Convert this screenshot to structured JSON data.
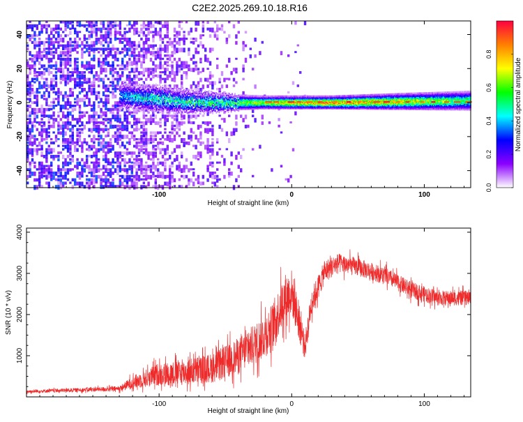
{
  "title": "C2E2.2025.269.10.18.R16",
  "colors": {
    "series": "#ee2a2a",
    "background": "#ffffff",
    "frame": "#000000"
  },
  "chart_data": [
    {
      "type": "heatmap",
      "name": "spectrogram",
      "xlabel": "Height of straight line (km)",
      "ylabel": "Frequency (Hz)",
      "xlim": [
        -200,
        135
      ],
      "ylim": [
        -50,
        48
      ],
      "xticks": [
        -100,
        0,
        100
      ],
      "yticks": [
        -40,
        -20,
        0,
        20,
        40
      ],
      "colorbar": {
        "label": "Normalized spectral amplitude",
        "range": [
          0.0,
          1.0
        ],
        "ticks": [
          0.0,
          0.2,
          0.4,
          0.6,
          0.8
        ],
        "tick_labels": [
          "0.0",
          "0.2",
          "0.4",
          "0.6",
          "0.8"
        ],
        "colormap": [
          "#ffffff",
          "#8b00ff",
          "#0000ff",
          "#00ffff",
          "#00ff00",
          "#ffff00",
          "#ff8000",
          "#ff0040"
        ]
      },
      "features": {
        "noise_region_x": [
          -200,
          -30
        ],
        "signal_band": [
          {
            "x": -130,
            "center_hz": 4,
            "halfwidth_hz": 4,
            "peak": 0.4
          },
          {
            "x": -100,
            "center_hz": 2,
            "halfwidth_hz": 4,
            "peak": 0.5
          },
          {
            "x": -80,
            "center_hz": 0.5,
            "halfwidth_hz": 3.5,
            "peak": 0.5
          },
          {
            "x": -50,
            "center_hz": 0,
            "halfwidth_hz": 2.5,
            "peak": 0.55
          },
          {
            "x": -20,
            "center_hz": 0,
            "halfwidth_hz": 2,
            "peak": 0.7
          },
          {
            "x": 0,
            "center_hz": 0,
            "halfwidth_hz": 2,
            "peak": 0.8
          },
          {
            "x": 30,
            "center_hz": 0,
            "halfwidth_hz": 2,
            "peak": 0.85
          },
          {
            "x": 80,
            "center_hz": 0.5,
            "halfwidth_hz": 2.5,
            "peak": 0.75
          },
          {
            "x": 135,
            "center_hz": 1,
            "halfwidth_hz": 3,
            "peak": 0.55
          }
        ]
      }
    },
    {
      "type": "line",
      "name": "snr",
      "xlabel": "Height of straight line (km)",
      "ylabel": "SNR (10 * v/v)",
      "xlim": [
        -200,
        135
      ],
      "ylim": [
        0,
        4100
      ],
      "xticks": [
        -100,
        0,
        100
      ],
      "yticks": [
        1000,
        2000,
        3000,
        4000
      ],
      "series": [
        {
          "name": "SNR",
          "envelope_x": [
            -200,
            -160,
            -130,
            -120,
            -100,
            -80,
            -60,
            -40,
            -25,
            -15,
            -5,
            0,
            8,
            10,
            15,
            25,
            35,
            50,
            70,
            90,
            110,
            135
          ],
          "envelope_mean": [
            130,
            170,
            200,
            350,
            550,
            600,
            700,
            1000,
            1350,
            1700,
            2400,
            2550,
            1500,
            1200,
            2300,
            3050,
            3250,
            3150,
            2950,
            2600,
            2400,
            2400
          ],
          "envelope_spread": [
            50,
            60,
            80,
            200,
            350,
            400,
            450,
            550,
            650,
            700,
            750,
            700,
            500,
            400,
            400,
            350,
            300,
            280,
            260,
            250,
            230,
            220
          ]
        }
      ]
    }
  ]
}
